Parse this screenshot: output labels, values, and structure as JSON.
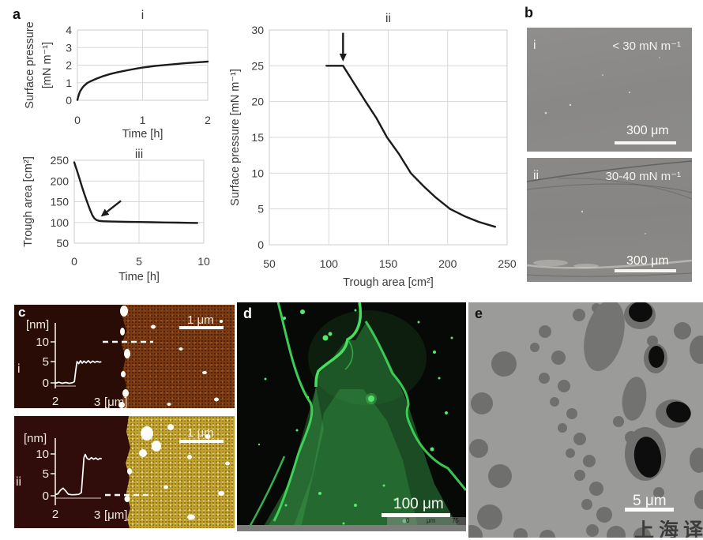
{
  "panels": {
    "a": "a",
    "b": "b",
    "c": "c",
    "d": "d",
    "e": "e"
  },
  "chart_data": [
    {
      "id": "a_i",
      "type": "line",
      "title": "i",
      "xlabel": "Time [h]",
      "ylabel_lines": [
        "Surface pressure",
        "[mN m⁻¹]"
      ],
      "xlim": [
        0,
        2
      ],
      "ylim": [
        0,
        4
      ],
      "xticks": [
        0,
        1,
        2
      ],
      "yticks": [
        0,
        1,
        2,
        3,
        4
      ],
      "grid": true,
      "legend": "none",
      "points": [
        [
          0,
          0.02
        ],
        [
          0.02,
          0.3
        ],
        [
          0.04,
          0.5
        ],
        [
          0.07,
          0.68
        ],
        [
          0.1,
          0.82
        ],
        [
          0.15,
          0.98
        ],
        [
          0.2,
          1.08
        ],
        [
          0.3,
          1.24
        ],
        [
          0.4,
          1.38
        ],
        [
          0.5,
          1.49
        ],
        [
          0.6,
          1.58
        ],
        [
          0.7,
          1.66
        ],
        [
          0.8,
          1.73
        ],
        [
          0.9,
          1.8
        ],
        [
          1.0,
          1.86
        ],
        [
          1.1,
          1.91
        ],
        [
          1.2,
          1.96
        ],
        [
          1.35,
          2.01
        ],
        [
          1.5,
          2.06
        ],
        [
          1.65,
          2.11
        ],
        [
          1.8,
          2.15
        ],
        [
          2.0,
          2.2
        ]
      ]
    },
    {
      "id": "a_ii",
      "type": "line",
      "title": "ii",
      "xlabel": "Trough area [cm²]",
      "ylabel_lines": [
        "Surface pressure [mN m⁻¹]"
      ],
      "xlim": [
        50,
        250
      ],
      "ylim": [
        0,
        30
      ],
      "xticks": [
        50,
        100,
        150,
        200,
        250
      ],
      "yticks": [
        0,
        5,
        10,
        15,
        20,
        25,
        30
      ],
      "grid": true,
      "legend": "none",
      "points": [
        [
          98,
          25
        ],
        [
          112,
          25
        ],
        [
          120,
          22.9
        ],
        [
          131,
          20
        ],
        [
          140,
          17.7
        ],
        [
          149,
          15
        ],
        [
          159,
          12.7
        ],
        [
          169,
          10
        ],
        [
          179,
          8.3
        ],
        [
          190,
          6.6
        ],
        [
          202,
          5
        ],
        [
          214,
          4.0
        ],
        [
          226,
          3.2
        ],
        [
          240,
          2.5
        ]
      ],
      "arrow": {
        "tail": [
          112,
          29.6
        ],
        "tip": [
          112,
          25.6
        ]
      }
    },
    {
      "id": "a_iii",
      "type": "line",
      "title": "iii",
      "xlabel": "Time [h]",
      "ylabel_lines": [
        "Trough area [cm²]"
      ],
      "xlim": [
        0,
        10
      ],
      "ylim": [
        50,
        250
      ],
      "xticks": [
        0,
        5,
        10
      ],
      "yticks": [
        50,
        100,
        150,
        200,
        250
      ],
      "grid": true,
      "legend": "none",
      "points": [
        [
          0,
          245
        ],
        [
          0.2,
          226
        ],
        [
          0.4,
          206
        ],
        [
          0.6,
          186
        ],
        [
          0.8,
          167
        ],
        [
          1.0,
          149
        ],
        [
          1.2,
          132
        ],
        [
          1.4,
          117
        ],
        [
          1.55,
          110
        ],
        [
          1.7,
          106
        ],
        [
          1.9,
          104
        ],
        [
          2.2,
          103
        ],
        [
          2.6,
          102.5
        ],
        [
          3.2,
          102
        ],
        [
          4,
          101.5
        ],
        [
          5,
          101
        ],
        [
          6,
          100.5
        ],
        [
          7,
          100
        ],
        [
          8,
          99.5
        ],
        [
          9,
          99
        ],
        [
          9.5,
          98.7
        ]
      ],
      "arrow": {
        "tail": [
          3.6,
          152
        ],
        "tip": [
          2.05,
          114
        ]
      }
    }
  ],
  "panel_b": {
    "label": "b",
    "images": [
      {
        "label": "i",
        "annotation": "< 30 mN m⁻¹",
        "scale_bar_label": "300 μm"
      },
      {
        "label": "ii",
        "annotation": "30-40 mN m⁻¹",
        "scale_bar_label": "300 μm"
      }
    ]
  },
  "panel_c": {
    "label": "c",
    "images": [
      {
        "label": "i",
        "scale_bar_label": "1 μm",
        "inset": {
          "ylabel": "[nm]",
          "yticks": [
            "10",
            "5",
            "0"
          ],
          "xtick_left": "2",
          "xtick_right": "3",
          "xunit": "[μm]",
          "profile": [
            [
              2.0,
              -0.1
            ],
            [
              2.08,
              0.15
            ],
            [
              2.16,
              -0.1
            ],
            [
              2.24,
              0.1
            ],
            [
              2.32,
              -0.1
            ],
            [
              2.4,
              0.05
            ],
            [
              2.44,
              0.3
            ],
            [
              2.47,
              3.0
            ],
            [
              2.5,
              5.1
            ],
            [
              2.54,
              4.6
            ],
            [
              2.58,
              5.3
            ],
            [
              2.62,
              4.7
            ],
            [
              2.66,
              5.2
            ],
            [
              2.71,
              4.8
            ],
            [
              2.76,
              5.3
            ],
            [
              2.81,
              4.8
            ],
            [
              2.86,
              5.2
            ],
            [
              2.91,
              4.9
            ],
            [
              2.96,
              5.15
            ],
            [
              3.02,
              4.95
            ],
            [
              3.06,
              5.05
            ]
          ]
        }
      },
      {
        "label": "ii",
        "scale_bar_label": "1 μm",
        "inset": {
          "ylabel": "[nm]",
          "yticks": [
            "10",
            "5",
            "0"
          ],
          "xtick_left": "2",
          "xtick_right": "3",
          "xunit": "[μm]",
          "profile": [
            [
              2.0,
              0.3
            ],
            [
              2.06,
              0.5
            ],
            [
              2.12,
              1.4
            ],
            [
              2.18,
              1.9
            ],
            [
              2.24,
              1.2
            ],
            [
              2.3,
              0.4
            ],
            [
              2.38,
              0.25
            ],
            [
              2.46,
              0.3
            ],
            [
              2.54,
              0.35
            ],
            [
              2.6,
              0.8
            ],
            [
              2.63,
              5.0
            ],
            [
              2.66,
              9.5
            ],
            [
              2.69,
              10.3
            ],
            [
              2.73,
              9.3
            ],
            [
              2.78,
              9.0
            ],
            [
              2.83,
              9.5
            ],
            [
              2.88,
              9.1
            ],
            [
              2.93,
              9.4
            ],
            [
              2.98,
              9.0
            ],
            [
              3.03,
              9.3
            ],
            [
              3.07,
              9.2
            ]
          ]
        }
      }
    ]
  },
  "panel_d": {
    "label": "d",
    "scale_bar_label": "100 μm",
    "ruler": {
      "zero": "0",
      "unit": "μm",
      "max": "75"
    }
  },
  "panel_e": {
    "label": "e",
    "scale_bar_label": "5 μm",
    "watermark": "上海译"
  }
}
